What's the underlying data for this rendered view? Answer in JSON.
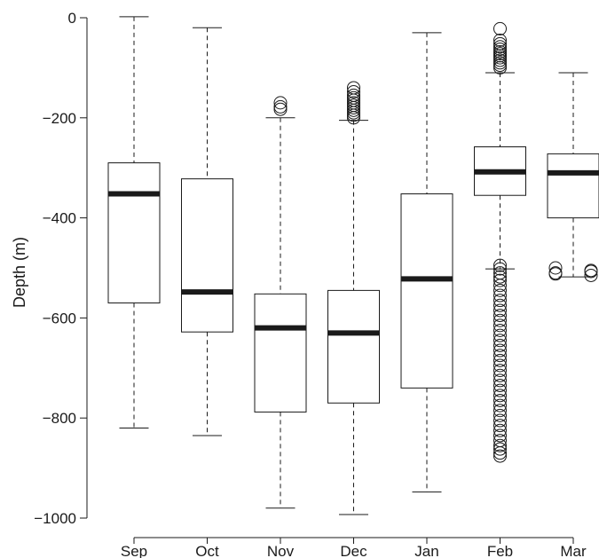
{
  "chart_data": {
    "type": "box",
    "title": "",
    "xlabel": "",
    "ylabel": "Depth (m)",
    "ylim": [
      -1000,
      0
    ],
    "y_ticks": [
      0,
      -200,
      -400,
      -600,
      -800,
      -1000
    ],
    "y_tick_labels": [
      "0",
      "-200",
      "-400",
      "-600",
      "-800",
      "-1000"
    ],
    "categories": [
      "Sep",
      "Oct",
      "Nov",
      "Dec",
      "Jan",
      "Feb",
      "Mar"
    ],
    "boxes": [
      {
        "category": "Sep",
        "whisker_high": 2,
        "q3": -290,
        "median": -352,
        "q1": -570,
        "whisker_low": -820,
        "outliers": []
      },
      {
        "category": "Oct",
        "whisker_high": -20,
        "q3": -322,
        "median": -548,
        "q1": -628,
        "whisker_low": -835,
        "outliers": []
      },
      {
        "category": "Nov",
        "whisker_high": -200,
        "q3": -552,
        "median": -620,
        "q1": -788,
        "whisker_low": -980,
        "outliers": [
          -170,
          -178,
          -183
        ]
      },
      {
        "category": "Dec",
        "whisker_high": -205,
        "q3": -545,
        "median": -630,
        "q1": -770,
        "whisker_low": -993,
        "outliers": [
          -140,
          -148,
          -155,
          -160,
          -165,
          -170,
          -175,
          -180,
          -185,
          -190,
          -195,
          -200
        ]
      },
      {
        "category": "Jan",
        "whisker_high": -30,
        "q3": -352,
        "median": -522,
        "q1": -740,
        "whisker_low": -948,
        "outliers": []
      },
      {
        "category": "Feb",
        "whisker_high": -110,
        "q3": -258,
        "median": -308,
        "q1": -355,
        "whisker_low": -502,
        "outliers": [
          -22,
          -45,
          -52,
          -58,
          -63,
          -68,
          -72,
          -76,
          -80,
          -85,
          -90,
          -95,
          -100,
          -495,
          -502,
          -510,
          -518,
          -525,
          -535,
          -545,
          -555,
          -565,
          -575,
          -585,
          -595,
          -605,
          -615,
          -625,
          -635,
          -645,
          -655,
          -665,
          -675,
          -685,
          -695,
          -705,
          -715,
          -725,
          -735,
          -745,
          -755,
          -765,
          -775,
          -785,
          -795,
          -805,
          -815,
          -825,
          -835,
          -845,
          -855,
          -862,
          -870,
          -876
        ]
      },
      {
        "category": "Mar",
        "whisker_high": -110,
        "q3": -272,
        "median": -310,
        "q1": -400,
        "whisker_low": -518,
        "outliers": [
          -500,
          -507,
          -512,
          -505,
          -510,
          -515
        ]
      }
    ],
    "grid": false,
    "legend": "none"
  }
}
